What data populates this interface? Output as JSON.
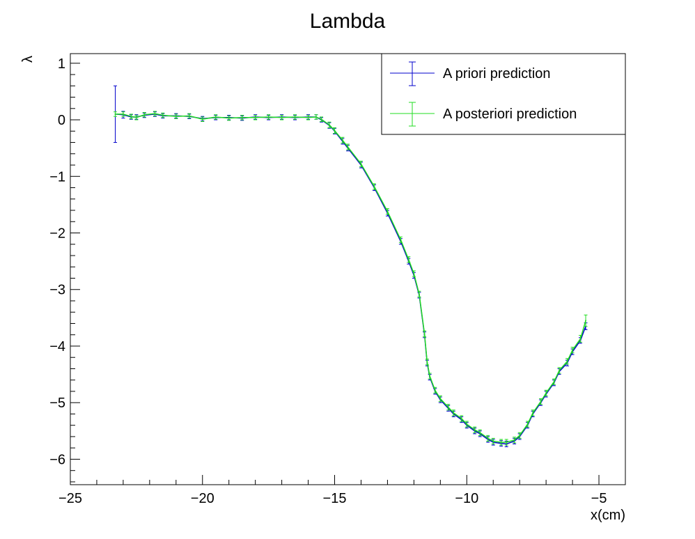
{
  "chart_data": {
    "type": "line",
    "title": "Lambda",
    "xlabel": "x(cm)",
    "ylabel": "λ",
    "xlim": [
      -25,
      -4
    ],
    "ylim": [
      -6.45,
      1.17
    ],
    "grid": false,
    "legend_position": "top-right",
    "x_ticks": [
      {
        "value": -25,
        "label": "−25"
      },
      {
        "value": -20,
        "label": "−20"
      },
      {
        "value": -15,
        "label": "−15"
      },
      {
        "value": -10,
        "label": "−10"
      },
      {
        "value": -5,
        "label": "−5"
      }
    ],
    "y_ticks": [
      {
        "value": 1,
        "label": "1"
      },
      {
        "value": 0,
        "label": "0"
      },
      {
        "value": -1,
        "label": "−1"
      },
      {
        "value": -2,
        "label": "−2"
      },
      {
        "value": -3,
        "label": "−3"
      },
      {
        "value": -4,
        "label": "−4"
      },
      {
        "value": -5,
        "label": "−5"
      },
      {
        "value": -6,
        "label": "−6"
      }
    ],
    "series": [
      {
        "name": "A priori prediction",
        "color": "#0000cc",
        "x": [
          -23.3,
          -23.0,
          -22.7,
          -22.5,
          -22.2,
          -21.8,
          -21.5,
          -21.0,
          -20.5,
          -20.0,
          -19.5,
          -19.0,
          -18.5,
          -18.0,
          -17.5,
          -17.0,
          -16.5,
          -16.0,
          -15.7,
          -15.5,
          -15.2,
          -15.0,
          -14.7,
          -14.5,
          -14.0,
          -13.5,
          -13.0,
          -12.5,
          -12.2,
          -12.0,
          -11.8,
          -11.6,
          -11.5,
          -11.4,
          -11.2,
          -11.0,
          -10.7,
          -10.5,
          -10.2,
          -10.0,
          -9.7,
          -9.5,
          -9.2,
          -9.0,
          -8.7,
          -8.5,
          -8.2,
          -8.0,
          -7.7,
          -7.5,
          -7.2,
          -7.0,
          -6.7,
          -6.5,
          -6.2,
          -6.0,
          -5.7,
          -5.5
        ],
        "y": [
          0.1,
          0.09,
          0.05,
          0.05,
          0.08,
          0.1,
          0.07,
          0.07,
          0.06,
          0.02,
          0.04,
          0.04,
          0.03,
          0.05,
          0.04,
          0.05,
          0.04,
          0.05,
          0.05,
          0.0,
          -0.1,
          -0.2,
          -0.38,
          -0.5,
          -0.8,
          -1.2,
          -1.65,
          -2.15,
          -2.5,
          -2.75,
          -3.1,
          -3.8,
          -4.3,
          -4.55,
          -4.8,
          -4.95,
          -5.1,
          -5.2,
          -5.3,
          -5.4,
          -5.5,
          -5.55,
          -5.65,
          -5.7,
          -5.72,
          -5.73,
          -5.68,
          -5.6,
          -5.4,
          -5.2,
          -5.0,
          -4.85,
          -4.65,
          -4.45,
          -4.3,
          -4.1,
          -3.9,
          -3.65
        ],
        "error": [
          0.5,
          0.06,
          0.04,
          0.04,
          0.04,
          0.04,
          0.04,
          0.04,
          0.04,
          0.04,
          0.04,
          0.04,
          0.04,
          0.04,
          0.04,
          0.04,
          0.04,
          0.04,
          0.04,
          0.04,
          0.05,
          0.05,
          0.05,
          0.05,
          0.05,
          0.05,
          0.05,
          0.05,
          0.05,
          0.05,
          0.05,
          0.05,
          0.05,
          0.05,
          0.05,
          0.05,
          0.05,
          0.05,
          0.05,
          0.05,
          0.05,
          0.05,
          0.05,
          0.05,
          0.05,
          0.05,
          0.05,
          0.05,
          0.05,
          0.05,
          0.05,
          0.05,
          0.05,
          0.05,
          0.05,
          0.05,
          0.05,
          0.06
        ]
      },
      {
        "name": "A posteriori prediction",
        "color": "#22dd22",
        "x": [
          -23.3,
          -23.0,
          -22.7,
          -22.5,
          -22.2,
          -21.8,
          -21.5,
          -21.0,
          -20.5,
          -20.0,
          -19.5,
          -19.0,
          -18.5,
          -18.0,
          -17.5,
          -17.0,
          -16.5,
          -16.0,
          -15.7,
          -15.5,
          -15.2,
          -15.0,
          -14.7,
          -14.5,
          -14.0,
          -13.5,
          -13.0,
          -12.5,
          -12.2,
          -12.0,
          -11.8,
          -11.6,
          -11.5,
          -11.4,
          -11.2,
          -11.0,
          -10.7,
          -10.5,
          -10.2,
          -10.0,
          -9.7,
          -9.5,
          -9.2,
          -9.0,
          -8.7,
          -8.5,
          -8.2,
          -8.0,
          -7.7,
          -7.5,
          -7.2,
          -7.0,
          -6.7,
          -6.5,
          -6.2,
          -6.0,
          -5.7,
          -5.5
        ],
        "y": [
          0.1,
          0.1,
          0.06,
          0.04,
          0.09,
          0.11,
          0.08,
          0.06,
          0.07,
          0.01,
          0.05,
          0.03,
          0.04,
          0.04,
          0.05,
          0.04,
          0.05,
          0.04,
          0.05,
          0.01,
          -0.09,
          -0.19,
          -0.36,
          -0.48,
          -0.78,
          -1.18,
          -1.62,
          -2.12,
          -2.47,
          -2.72,
          -3.08,
          -3.78,
          -4.28,
          -4.53,
          -4.78,
          -4.93,
          -5.08,
          -5.18,
          -5.28,
          -5.38,
          -5.48,
          -5.53,
          -5.63,
          -5.68,
          -5.7,
          -5.7,
          -5.66,
          -5.58,
          -5.38,
          -5.18,
          -4.98,
          -4.83,
          -4.63,
          -4.43,
          -4.27,
          -4.07,
          -3.87,
          -3.55
        ],
        "error": [
          0.04,
          0.04,
          0.04,
          0.04,
          0.04,
          0.04,
          0.04,
          0.04,
          0.04,
          0.04,
          0.04,
          0.04,
          0.04,
          0.04,
          0.04,
          0.04,
          0.04,
          0.04,
          0.04,
          0.04,
          0.05,
          0.05,
          0.05,
          0.05,
          0.05,
          0.05,
          0.05,
          0.05,
          0.05,
          0.05,
          0.05,
          0.05,
          0.05,
          0.05,
          0.05,
          0.05,
          0.05,
          0.05,
          0.05,
          0.05,
          0.05,
          0.05,
          0.05,
          0.05,
          0.05,
          0.05,
          0.05,
          0.05,
          0.05,
          0.05,
          0.05,
          0.05,
          0.05,
          0.05,
          0.05,
          0.05,
          0.06,
          0.1
        ]
      }
    ]
  }
}
